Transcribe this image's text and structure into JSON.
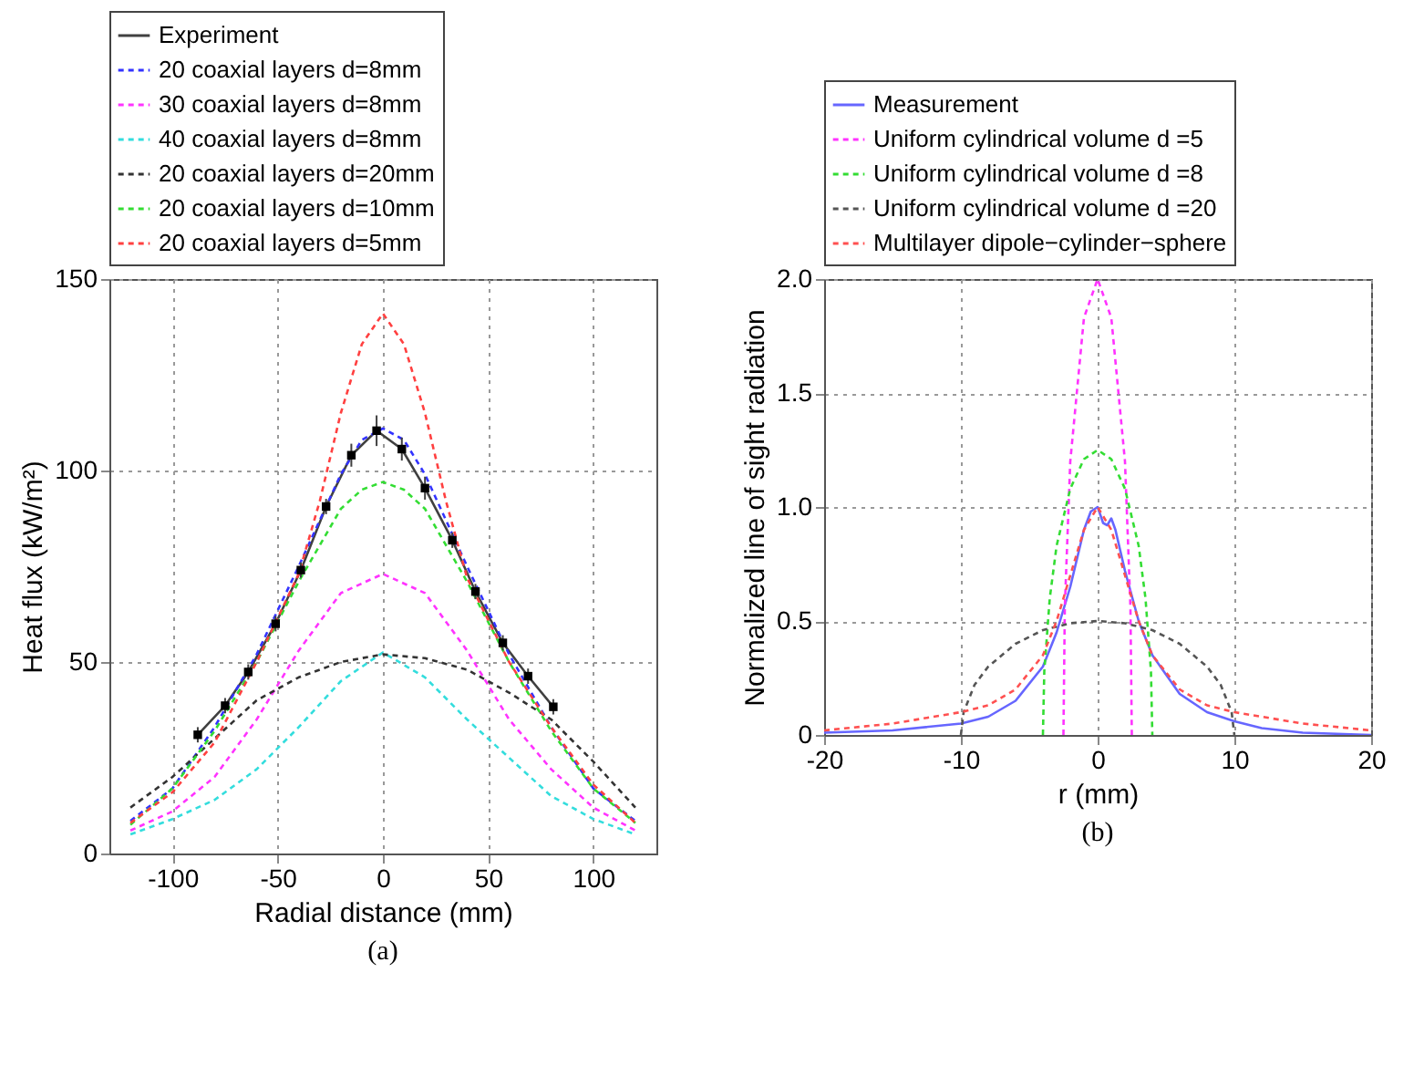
{
  "chart_data": [
    {
      "type": "line",
      "xlabel": "Radial distance (mm)",
      "ylabel": "Heat flux (kW/m²)",
      "annotations": [
        "(a)"
      ],
      "xlim": [
        -130,
        130
      ],
      "xticks": [
        -100,
        -50,
        0,
        50,
        100
      ],
      "ylim": [
        0,
        150
      ],
      "yticks": [
        0,
        50,
        100,
        150
      ],
      "grid": true,
      "legend": "top",
      "series": [
        {
          "name": "Experiment",
          "color": "#404040",
          "line_style": "solid",
          "marker": "square",
          "x": [
            -88,
            -75,
            -64,
            -51,
            -39,
            -27,
            -15,
            -3,
            9,
            20,
            33,
            44,
            57,
            69,
            81
          ],
          "values": [
            31,
            38.6,
            47.4,
            60,
            74,
            90.6,
            104,
            110.4,
            105.6,
            95.4,
            81.8,
            68.4,
            55,
            46.3,
            38.3
          ],
          "errors": [
            2,
            2,
            2,
            2,
            2,
            2,
            3,
            4,
            3,
            3,
            2,
            2,
            2,
            2,
            2
          ]
        },
        {
          "name": "20 coaxial layers d=8mm",
          "color": "#3333ff",
          "line_style": "dashed",
          "x": [
            -120,
            -100,
            -80,
            -60,
            -40,
            -20,
            -10,
            0,
            10,
            20,
            40,
            60,
            80,
            100,
            120
          ],
          "values": [
            8.5,
            17,
            33,
            52,
            75,
            99,
            108,
            111,
            108,
            99,
            75,
            52,
            33,
            17,
            8.5
          ]
        },
        {
          "name": "30 coaxial layers d=8mm",
          "color": "#ff33ff",
          "line_style": "dashed",
          "x": [
            -120,
            -100,
            -80,
            -60,
            -40,
            -20,
            0,
            20,
            40,
            60,
            80,
            100,
            120
          ],
          "values": [
            6,
            11,
            20,
            35,
            53,
            68,
            73,
            68,
            53,
            35,
            22,
            12,
            6
          ]
        },
        {
          "name": "40 coaxial layers d=8mm",
          "color": "#33dddd",
          "line_style": "dashed",
          "x": [
            -120,
            -100,
            -80,
            -60,
            -40,
            -20,
            0,
            20,
            40,
            60,
            80,
            100,
            120
          ],
          "values": [
            5,
            9,
            14,
            22,
            33,
            45,
            52.5,
            46,
            35,
            25,
            15,
            9,
            5
          ]
        },
        {
          "name": "20 coaxial layers d=20mm",
          "color": "#333333",
          "line_style": "dashed",
          "x": [
            -120,
            -100,
            -80,
            -60,
            -40,
            -20,
            0,
            20,
            40,
            60,
            80,
            100,
            120
          ],
          "values": [
            12,
            20,
            30,
            40,
            46,
            50,
            52,
            51,
            48,
            42,
            35,
            24,
            12
          ]
        },
        {
          "name": "20 coaxial layers d=10mm",
          "color": "#33dd33",
          "line_style": "dashed",
          "x": [
            -120,
            -100,
            -80,
            -60,
            -40,
            -20,
            -10,
            0,
            10,
            20,
            40,
            60,
            80,
            100,
            120
          ],
          "values": [
            7.5,
            17,
            32,
            50,
            71,
            90,
            95,
            97,
            95,
            90,
            71,
            50,
            32,
            17,
            8
          ]
        },
        {
          "name": "20 coaxial layers d=5mm",
          "color": "#ff4040",
          "line_style": "dashed",
          "x": [
            -120,
            -100,
            -80,
            -60,
            -40,
            -30,
            -20,
            -10,
            0,
            10,
            20,
            30,
            40,
            60,
            80,
            100,
            120
          ],
          "values": [
            8,
            16,
            29,
            50,
            73,
            92,
            115,
            133,
            141,
            133,
            115,
            92,
            72,
            50,
            33,
            18,
            8
          ]
        }
      ]
    },
    {
      "type": "line",
      "xlabel": "r (mm)",
      "ylabel": "Normalized line of sight radiation",
      "annotations": [
        "(b)"
      ],
      "xlim": [
        -20,
        20
      ],
      "xticks": [
        -20,
        -10,
        0,
        10,
        20
      ],
      "ylim": [
        0,
        2
      ],
      "yticks": [
        0,
        {
          "value": 0.5,
          "label": "0.5"
        },
        {
          "value": 1,
          "label": "1.0"
        },
        {
          "value": 1.5,
          "label": "1.5"
        },
        {
          "value": 2,
          "label": "2.0"
        }
      ],
      "grid": true,
      "legend": "top",
      "series": [
        {
          "name": "Measurement",
          "color": "#6666ff",
          "line_style": "solid",
          "x": [
            -20,
            -15,
            -10,
            -8,
            -6,
            -4,
            -3,
            -2,
            -1,
            -0.5,
            0,
            0.4,
            0.7,
            1,
            1.3,
            2,
            3,
            4,
            6,
            8,
            10,
            12,
            15,
            20
          ],
          "values": [
            0.01,
            0.02,
            0.05,
            0.08,
            0.15,
            0.3,
            0.45,
            0.65,
            0.9,
            0.98,
            1.0,
            0.93,
            0.92,
            0.95,
            0.9,
            0.72,
            0.5,
            0.35,
            0.18,
            0.1,
            0.06,
            0.03,
            0.01,
            0.0
          ]
        },
        {
          "name": "Uniform cylindrical volume d =5",
          "color": "#ff33ff",
          "line_style": "dashed",
          "x": [
            -2.5,
            -2.4,
            -2,
            -1,
            0,
            1,
            2,
            2.4,
            2.5
          ],
          "values": [
            0,
            0.56,
            1.2,
            1.83,
            2.0,
            1.83,
            1.2,
            0.56,
            0
          ]
        },
        {
          "name": "Uniform cylindrical volume d =8",
          "color": "#33dd33",
          "line_style": "dashed",
          "x": [
            -4,
            -3.9,
            -3.5,
            -3,
            -2,
            -1,
            0,
            1,
            2,
            3,
            3.5,
            3.9,
            4
          ],
          "values": [
            0,
            0.28,
            0.6,
            0.83,
            1.08,
            1.21,
            1.25,
            1.21,
            1.08,
            0.83,
            0.6,
            0.28,
            0
          ]
        },
        {
          "name": "Uniform cylindrical volume d =20",
          "color": "#555555",
          "line_style": "dashed",
          "x": [
            -10,
            -9.8,
            -9,
            -8,
            -6,
            -4,
            -2,
            0,
            2,
            4,
            6,
            8,
            9,
            9.8,
            10
          ],
          "values": [
            0,
            0.1,
            0.22,
            0.3,
            0.4,
            0.46,
            0.49,
            0.5,
            0.49,
            0.46,
            0.4,
            0.3,
            0.22,
            0.1,
            0
          ]
        },
        {
          "name": "Multilayer dipole−cylinder−sphere",
          "color": "#ff5050",
          "line_style": "dashed",
          "x": [
            -20,
            -15,
            -12,
            -10,
            -8,
            -6,
            -4,
            -3,
            -2,
            -1,
            0,
            1,
            2,
            3,
            4,
            6,
            8,
            10,
            12,
            15,
            20
          ],
          "values": [
            0.02,
            0.05,
            0.08,
            0.1,
            0.13,
            0.2,
            0.35,
            0.5,
            0.7,
            0.9,
            1.0,
            0.9,
            0.7,
            0.5,
            0.35,
            0.2,
            0.13,
            0.1,
            0.08,
            0.05,
            0.02
          ]
        }
      ]
    }
  ]
}
